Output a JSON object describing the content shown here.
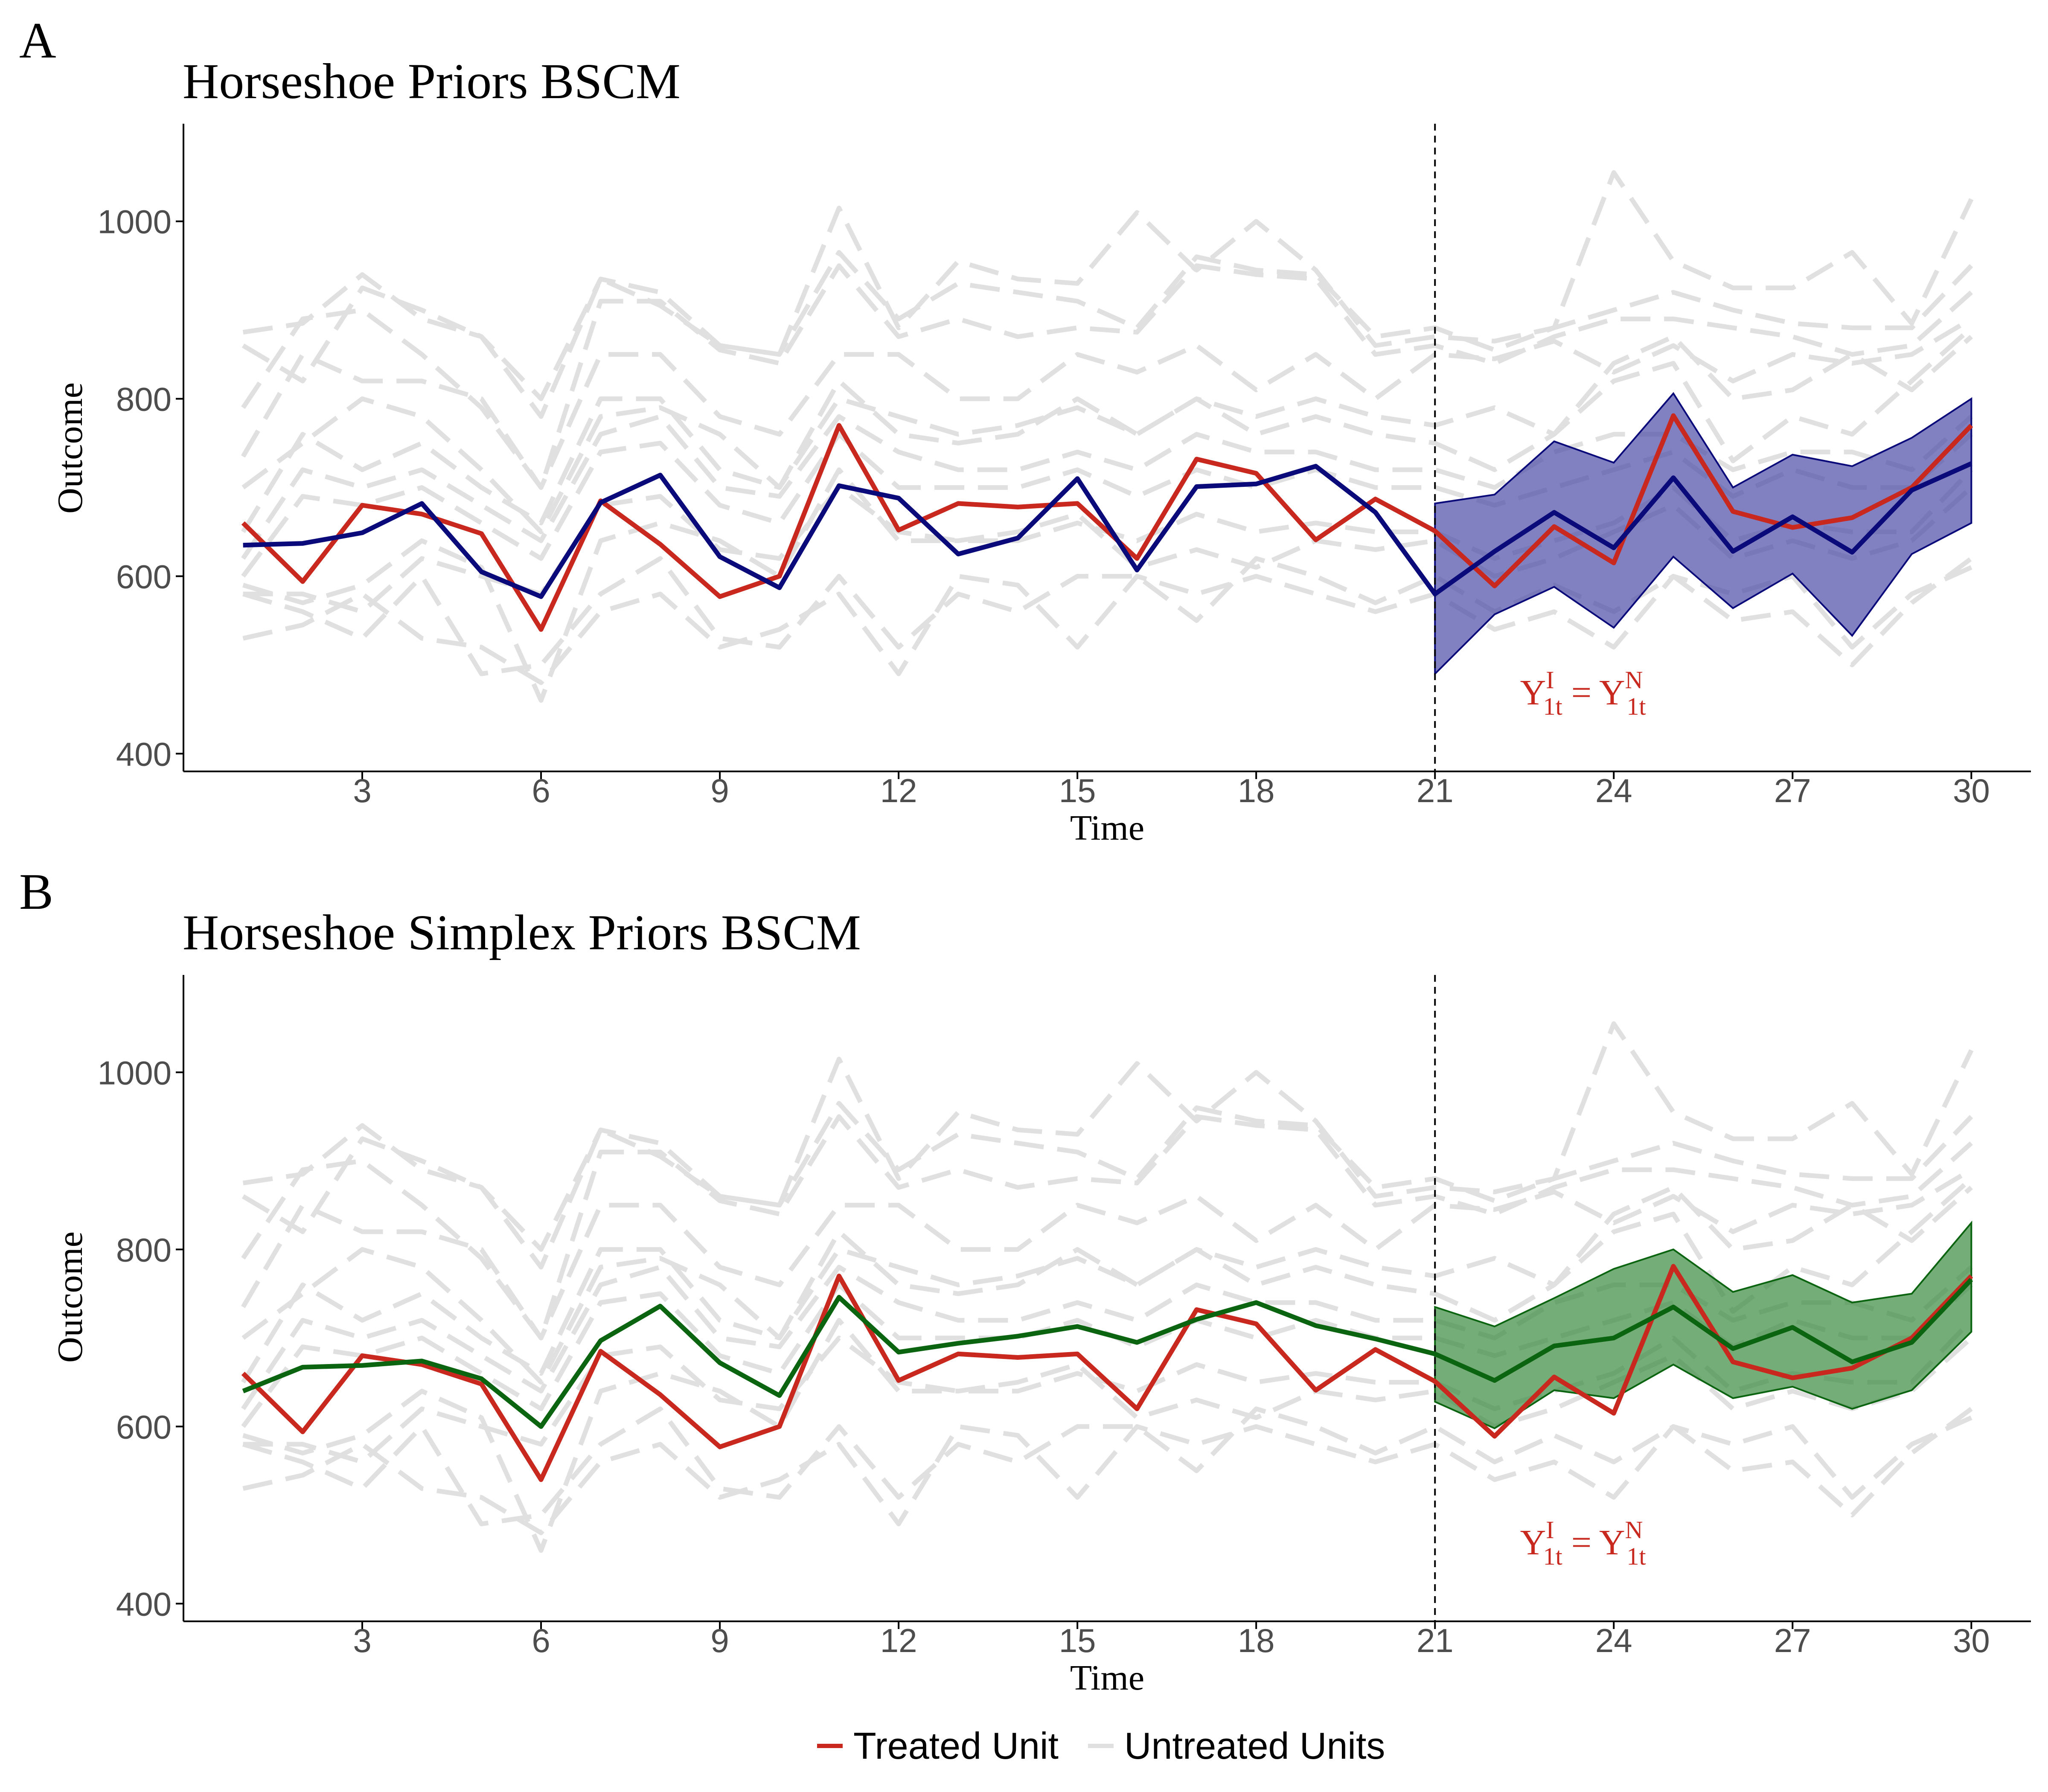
{
  "legend": {
    "treated_label": "Treated Unit",
    "untreated_label": "Untreated Units",
    "treated_color": "#c8281e",
    "untreated_color": "#e0e0e0"
  },
  "chart_data": [
    {
      "type": "line",
      "panel_letter": "A",
      "title": "Horseshoe Priors BSCM",
      "xlabel": "Time",
      "ylabel": "Outcome",
      "xlim": [
        0,
        31
      ],
      "ylim": [
        380,
        1110
      ],
      "xticks": [
        3,
        6,
        9,
        12,
        15,
        18,
        21,
        24,
        27,
        30
      ],
      "yticks": [
        400,
        600,
        800,
        1000
      ],
      "intervention_time": 21,
      "annotation": {
        "x": 23,
        "y": 470,
        "base": "Y",
        "sup1": "I",
        "sub1": "1t",
        "eq": "=",
        "sup2": "N",
        "sub2": "1t"
      },
      "untreated_series": [
        [
          875,
          885,
          940,
          890,
          870,
          800,
          935,
          920,
          860,
          850,
          1015,
          880,
          955,
          935,
          930,
          1010,
          945,
          1000,
          945,
          860,
          870,
          865,
          880,
          1055,
          955,
          925,
          925,
          965,
          885,
          1025
        ],
        [
          860,
          820,
          925,
          900,
          870,
          780,
          935,
          905,
          860,
          850,
          965,
          890,
          930,
          920,
          910,
          880,
          960,
          945,
          940,
          870,
          880,
          855,
          880,
          900,
          920,
          900,
          885,
          880,
          880,
          950
        ],
        [
          790,
          890,
          900,
          850,
          790,
          700,
          910,
          910,
          855,
          840,
          950,
          870,
          890,
          870,
          880,
          875,
          950,
          940,
          935,
          850,
          860,
          840,
          870,
          890,
          890,
          880,
          870,
          850,
          860,
          920
        ],
        [
          735,
          850,
          820,
          820,
          800,
          700,
          850,
          850,
          780,
          760,
          850,
          850,
          800,
          800,
          850,
          830,
          860,
          810,
          850,
          800,
          850,
          845,
          865,
          830,
          860,
          820,
          850,
          840,
          850,
          890
        ],
        [
          700,
          750,
          800,
          780,
          720,
          650,
          780,
          790,
          760,
          700,
          800,
          780,
          760,
          770,
          790,
          760,
          800,
          780,
          800,
          780,
          770,
          790,
          760,
          840,
          870,
          800,
          810,
          850,
          810,
          870
        ],
        [
          650,
          760,
          720,
          750,
          700,
          660,
          800,
          800,
          720,
          700,
          820,
          760,
          750,
          760,
          800,
          760,
          800,
          760,
          780,
          760,
          750,
          720,
          760,
          820,
          840,
          730,
          780,
          760,
          820,
          880
        ],
        [
          620,
          720,
          700,
          720,
          680,
          640,
          760,
          780,
          700,
          690,
          780,
          740,
          720,
          720,
          740,
          720,
          760,
          740,
          740,
          720,
          720,
          700,
          740,
          760,
          760,
          720,
          740,
          740,
          720,
          780
        ],
        [
          600,
          690,
          680,
          700,
          660,
          620,
          740,
          750,
          680,
          660,
          760,
          700,
          700,
          700,
          720,
          690,
          720,
          700,
          720,
          700,
          700,
          680,
          700,
          720,
          740,
          690,
          720,
          700,
          700,
          760
        ],
        [
          580,
          580,
          560,
          620,
          600,
          580,
          680,
          690,
          630,
          620,
          700,
          650,
          640,
          640,
          660,
          640,
          670,
          650,
          660,
          650,
          650,
          620,
          640,
          660,
          700,
          640,
          660,
          650,
          650,
          720
        ],
        [
          590,
          570,
          590,
          640,
          610,
          460,
          640,
          660,
          640,
          600,
          720,
          640,
          640,
          650,
          670,
          610,
          630,
          610,
          640,
          630,
          640,
          600,
          620,
          650,
          680,
          620,
          640,
          620,
          640,
          700
        ],
        [
          580,
          560,
          530,
          600,
          490,
          500,
          580,
          620,
          530,
          520,
          600,
          520,
          580,
          560,
          600,
          600,
          550,
          620,
          600,
          570,
          600,
          560,
          590,
          560,
          600,
          550,
          560,
          500,
          570,
          620
        ],
        [
          530,
          545,
          580,
          530,
          520,
          480,
          560,
          580,
          520,
          540,
          580,
          490,
          600,
          590,
          520,
          600,
          580,
          600,
          580,
          560,
          580,
          540,
          560,
          520,
          600,
          580,
          600,
          520,
          580,
          610
        ]
      ],
      "treated": [
        660,
        594,
        680,
        670,
        648,
        540,
        685,
        636,
        577,
        600,
        770,
        652,
        682,
        678,
        682,
        620,
        732,
        716,
        641,
        687,
        651,
        589,
        656,
        615,
        781,
        673,
        655,
        666,
        700,
        770
      ],
      "synthetic_name": "",
      "synthetic": [
        635,
        637,
        649,
        682,
        605,
        577,
        683,
        714,
        622,
        587,
        702,
        688,
        625,
        643,
        710,
        607,
        701,
        704,
        724,
        672,
        580,
        628,
        672,
        632,
        711,
        628,
        667,
        627,
        697,
        727
      ],
      "band_lower": [
        490,
        557,
        588,
        542,
        622,
        564,
        603,
        533,
        625,
        660
      ],
      "band_upper": [
        682,
        692,
        752,
        728,
        806,
        700,
        737,
        724,
        756,
        800
      ],
      "synthetic_color": "#0a0a7a",
      "band_color": "#4b4ba8"
    },
    {
      "type": "line",
      "panel_letter": "B",
      "title": "Horseshoe Simplex Priors BSCM",
      "xlabel": "Time",
      "ylabel": "Outcome",
      "xlim": [
        0,
        31
      ],
      "ylim": [
        380,
        1110
      ],
      "xticks": [
        3,
        6,
        9,
        12,
        15,
        18,
        21,
        24,
        27,
        30
      ],
      "yticks": [
        400,
        600,
        800,
        1000
      ],
      "intervention_time": 21,
      "annotation": {
        "x": 23,
        "y": 470,
        "base": "Y",
        "sup1": "I",
        "sub1": "1t",
        "eq": "=",
        "sup2": "N",
        "sub2": "1t"
      },
      "untreated_series": [
        [
          875,
          885,
          940,
          890,
          870,
          800,
          935,
          920,
          860,
          850,
          1015,
          880,
          955,
          935,
          930,
          1010,
          945,
          1000,
          945,
          860,
          870,
          865,
          880,
          1055,
          955,
          925,
          925,
          965,
          885,
          1025
        ],
        [
          860,
          820,
          925,
          900,
          870,
          780,
          935,
          905,
          860,
          850,
          965,
          890,
          930,
          920,
          910,
          880,
          960,
          945,
          940,
          870,
          880,
          855,
          880,
          900,
          920,
          900,
          885,
          880,
          880,
          950
        ],
        [
          790,
          890,
          900,
          850,
          790,
          700,
          910,
          910,
          855,
          840,
          950,
          870,
          890,
          870,
          880,
          875,
          950,
          940,
          935,
          850,
          860,
          840,
          870,
          890,
          890,
          880,
          870,
          850,
          860,
          920
        ],
        [
          735,
          850,
          820,
          820,
          800,
          700,
          850,
          850,
          780,
          760,
          850,
          850,
          800,
          800,
          850,
          830,
          860,
          810,
          850,
          800,
          850,
          845,
          865,
          830,
          860,
          820,
          850,
          840,
          850,
          890
        ],
        [
          700,
          750,
          800,
          780,
          720,
          650,
          780,
          790,
          760,
          700,
          800,
          780,
          760,
          770,
          790,
          760,
          800,
          780,
          800,
          780,
          770,
          790,
          760,
          840,
          870,
          800,
          810,
          850,
          810,
          870
        ],
        [
          650,
          760,
          720,
          750,
          700,
          660,
          800,
          800,
          720,
          700,
          820,
          760,
          750,
          760,
          800,
          760,
          800,
          760,
          780,
          760,
          750,
          720,
          760,
          820,
          840,
          730,
          780,
          760,
          820,
          880
        ],
        [
          620,
          720,
          700,
          720,
          680,
          640,
          760,
          780,
          700,
          690,
          780,
          740,
          720,
          720,
          740,
          720,
          760,
          740,
          740,
          720,
          720,
          700,
          740,
          760,
          760,
          720,
          740,
          740,
          720,
          780
        ],
        [
          600,
          690,
          680,
          700,
          660,
          620,
          740,
          750,
          680,
          660,
          760,
          700,
          700,
          700,
          720,
          690,
          720,
          700,
          720,
          700,
          700,
          680,
          700,
          720,
          740,
          690,
          720,
          700,
          700,
          760
        ],
        [
          580,
          580,
          560,
          620,
          600,
          580,
          680,
          690,
          630,
          620,
          700,
          650,
          640,
          640,
          660,
          640,
          670,
          650,
          660,
          650,
          650,
          620,
          640,
          660,
          700,
          640,
          660,
          650,
          650,
          720
        ],
        [
          590,
          570,
          590,
          640,
          610,
          460,
          640,
          660,
          640,
          600,
          720,
          640,
          640,
          650,
          670,
          610,
          630,
          610,
          640,
          630,
          640,
          600,
          620,
          650,
          680,
          620,
          640,
          620,
          640,
          700
        ],
        [
          580,
          560,
          530,
          600,
          490,
          500,
          580,
          620,
          530,
          520,
          600,
          520,
          580,
          560,
          600,
          600,
          550,
          620,
          600,
          570,
          600,
          560,
          590,
          560,
          600,
          550,
          560,
          500,
          570,
          620
        ],
        [
          530,
          545,
          580,
          530,
          520,
          480,
          560,
          580,
          520,
          540,
          580,
          490,
          600,
          590,
          520,
          600,
          580,
          600,
          580,
          560,
          580,
          540,
          560,
          520,
          600,
          580,
          600,
          520,
          580,
          610
        ]
      ],
      "treated": [
        660,
        594,
        680,
        670,
        648,
        540,
        685,
        636,
        577,
        600,
        770,
        652,
        682,
        678,
        682,
        620,
        732,
        716,
        641,
        687,
        651,
        589,
        656,
        615,
        781,
        673,
        655,
        666,
        700,
        770
      ],
      "synthetic_name": "",
      "synthetic": [
        640,
        667,
        669,
        674,
        654,
        600,
        697,
        736,
        672,
        635,
        746,
        684,
        694,
        702,
        713,
        695,
        721,
        740,
        714,
        699,
        682,
        652,
        691,
        700,
        735,
        688,
        712,
        673,
        695,
        766
      ],
      "band_lower": [
        628,
        598,
        641,
        632,
        670,
        632,
        645,
        620,
        641,
        707
      ],
      "band_upper": [
        735,
        713,
        745,
        778,
        800,
        752,
        771,
        740,
        750,
        830
      ],
      "synthetic_color": "#0b6410",
      "band_color": "#3b8a3e"
    }
  ]
}
